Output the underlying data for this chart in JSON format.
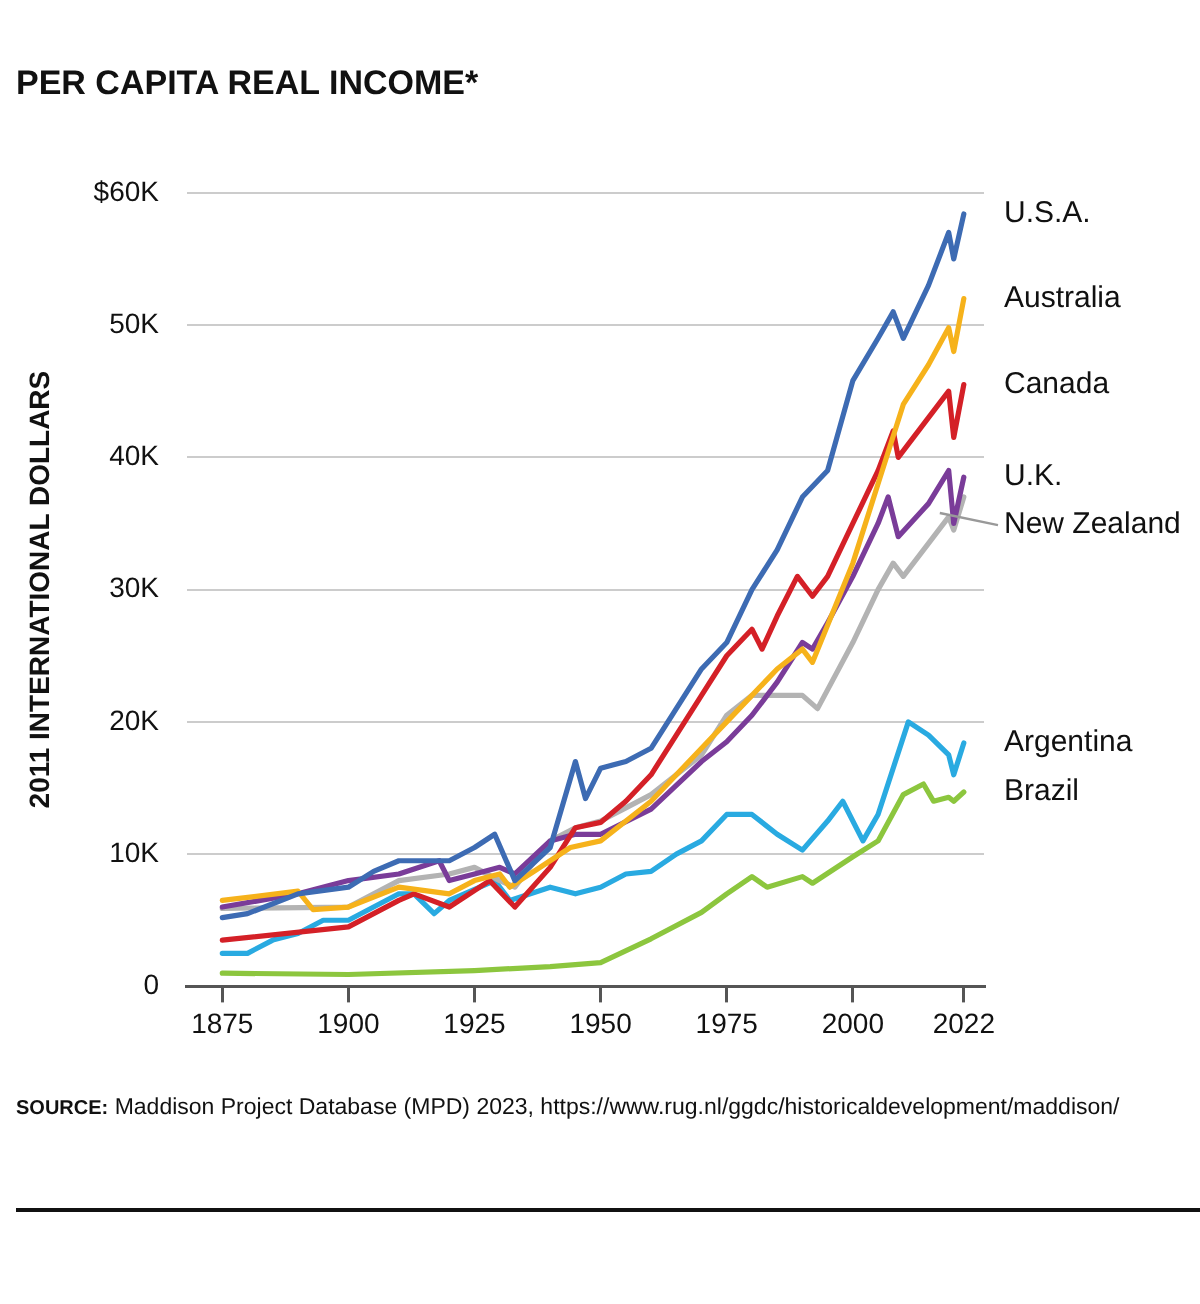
{
  "chart_data": {
    "type": "line",
    "title": "PER CAPITA REAL INCOME*",
    "ylabel": "2011 INTERNATIONAL DOLLARS",
    "xlim": [
      1868,
      2026
    ],
    "xticks": [
      1875,
      1900,
      1925,
      1950,
      1975,
      2000,
      2022
    ],
    "ylim": [
      0,
      60
    ],
    "yticks": [
      0,
      {
        "value": 10,
        "label": "10K"
      },
      {
        "value": 20,
        "label": "20K"
      },
      {
        "value": 30,
        "label": "30K"
      },
      {
        "value": 40,
        "label": "40K"
      },
      {
        "value": 50,
        "label": "50K"
      },
      {
        "value": 60,
        "label": "$60K"
      }
    ],
    "grid": "y",
    "marker": "none",
    "line_style": "solid",
    "series": [
      {
        "name": "U.S.A.",
        "color": "#3d6bb3",
        "x": [
          1875,
          1880,
          1890,
          1900,
          1905,
          1910,
          1915,
          1920,
          1925,
          1929,
          1933,
          1940,
          1945,
          1947,
          1950,
          1955,
          1960,
          1965,
          1970,
          1975,
          1980,
          1985,
          1990,
          1995,
          2000,
          2005,
          2008,
          2010,
          2015,
          2019,
          2020,
          2022
        ],
        "values": [
          5.2,
          5.5,
          7,
          7.5,
          8.7,
          9.5,
          9.5,
          9.5,
          10.5,
          11.5,
          8,
          10.5,
          17,
          14.2,
          16.5,
          17,
          18,
          21,
          24,
          26,
          30,
          33,
          37,
          39,
          45.8,
          49,
          51,
          49,
          53,
          57,
          55,
          58.4
        ]
      },
      {
        "name": "Australia",
        "color": "#f6b21b",
        "x": [
          1875,
          1890,
          1893,
          1900,
          1910,
          1920,
          1925,
          1930,
          1932,
          1940,
          1944,
          1950,
          1960,
          1970,
          1975,
          1980,
          1985,
          1990,
          1992,
          2000,
          2005,
          2010,
          2015,
          2019,
          2020,
          2022
        ],
        "values": [
          6.5,
          7.2,
          5.8,
          6,
          7.5,
          7,
          8,
          8.5,
          7.5,
          9.5,
          10.5,
          11,
          14,
          18,
          20,
          22,
          24,
          25.5,
          24.5,
          32,
          38,
          44,
          47,
          49.8,
          48,
          52
        ]
      },
      {
        "name": "Canada",
        "color": "#d42027",
        "x": [
          1875,
          1900,
          1910,
          1913,
          1920,
          1928,
          1933,
          1940,
          1945,
          1950,
          1955,
          1960,
          1965,
          1970,
          1975,
          1980,
          1982,
          1985,
          1989,
          1992,
          1995,
          2000,
          2005,
          2008,
          2009,
          2015,
          2019,
          2020,
          2022
        ],
        "values": [
          3.5,
          4.5,
          6.5,
          7,
          6,
          8,
          6,
          9,
          12,
          12.4,
          14,
          16,
          19,
          22,
          25,
          27,
          25.5,
          28,
          31,
          29.5,
          31,
          35,
          39,
          42,
          40,
          43,
          45,
          41.5,
          45.5
        ]
      },
      {
        "name": "U.K.",
        "color": "#7a3c99",
        "x": [
          1875,
          1890,
          1900,
          1910,
          1918,
          1920,
          1925,
          1930,
          1933,
          1940,
          1945,
          1950,
          1960,
          1970,
          1975,
          1980,
          1985,
          1990,
          1992,
          1995,
          2000,
          2005,
          2007,
          2009,
          2015,
          2019,
          2020,
          2022
        ],
        "values": [
          6,
          7,
          8,
          8.5,
          9.5,
          8,
          8.5,
          9,
          8.5,
          11,
          11.5,
          11.5,
          13.4,
          17,
          18.5,
          20.5,
          23,
          26,
          25.5,
          27.5,
          31,
          35,
          37,
          34,
          36.5,
          39,
          35,
          38.5
        ]
      },
      {
        "name": "New Zealand",
        "color": "#b3b3b3",
        "x": [
          1875,
          1900,
          1910,
          1920,
          1925,
          1930,
          1933,
          1940,
          1945,
          1950,
          1955,
          1960,
          1970,
          1975,
          1980,
          1985,
          1990,
          1993,
          2000,
          2005,
          2008,
          2010,
          2015,
          2019,
          2020,
          2022
        ],
        "values": [
          5.9,
          6,
          8,
          8.5,
          9,
          8,
          7.5,
          11,
          12,
          12.5,
          13.5,
          14.5,
          17.5,
          20.5,
          22,
          22,
          22,
          21,
          26,
          30,
          32,
          31,
          33.5,
          35.5,
          34.5,
          37
        ]
      },
      {
        "name": "Argentina",
        "color": "#29aae1",
        "x": [
          1875,
          1880,
          1885,
          1890,
          1895,
          1900,
          1905,
          1910,
          1913,
          1917,
          1920,
          1929,
          1932,
          1940,
          1945,
          1950,
          1955,
          1960,
          1965,
          1970,
          1975,
          1980,
          1985,
          1990,
          1995,
          1998,
          2002,
          2005,
          2011,
          2015,
          2019,
          2020,
          2022
        ],
        "values": [
          2.5,
          2.5,
          3.5,
          4,
          5,
          5,
          6,
          7,
          7,
          5.5,
          6.5,
          8,
          6.5,
          7.5,
          7,
          7.5,
          8.5,
          8.7,
          10,
          11,
          13,
          13,
          11.5,
          10.3,
          12.5,
          14,
          11,
          13,
          20,
          19,
          17.5,
          16,
          18.4
        ]
      },
      {
        "name": "Brazil",
        "color": "#8cc63e",
        "x": [
          1875,
          1900,
          1925,
          1940,
          1950,
          1960,
          1970,
          1975,
          1980,
          1983,
          1990,
          1992,
          2000,
          2005,
          2010,
          2014,
          2016,
          2019,
          2020,
          2022
        ],
        "values": [
          1,
          0.9,
          1.2,
          1.5,
          1.8,
          3.6,
          5.6,
          7,
          8.3,
          7.5,
          8.3,
          7.8,
          9.8,
          11,
          14.5,
          15.3,
          14,
          14.3,
          14,
          14.7
        ]
      }
    ],
    "annotations": [
      "SOURCE: Maddison Project Database (MPD) 2023, https://www.rug.nl/ggdc/historicaldevelopment/maddison/"
    ]
  }
}
